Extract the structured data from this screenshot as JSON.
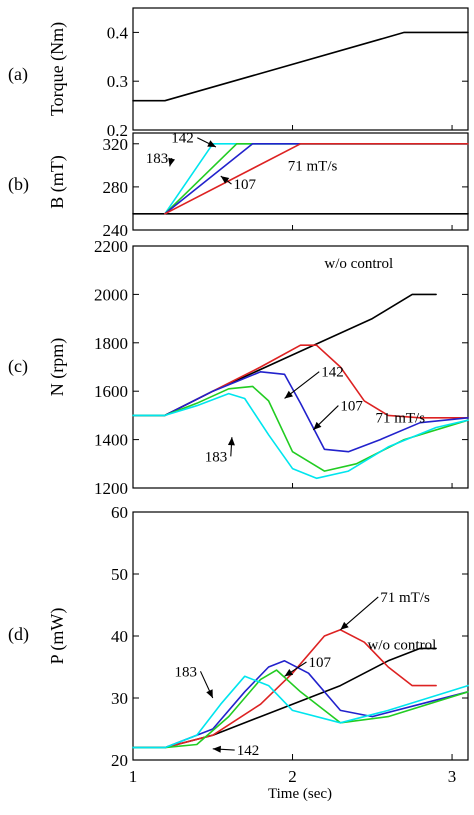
{
  "chart_data": [
    {
      "panel": "(a)",
      "type": "line",
      "ylabel": "Torque (Nm)",
      "ylim": [
        0.2,
        0.45
      ],
      "yticks": [
        0.2,
        0.3,
        0.4
      ],
      "xlim": [
        1,
        3.1
      ],
      "series": [
        {
          "color": "#000000",
          "x": [
            1.0,
            1.2,
            2.7,
            3.1
          ],
          "y": [
            0.26,
            0.26,
            0.4,
            0.4
          ]
        }
      ],
      "annotations": []
    },
    {
      "panel": "(b)",
      "type": "line",
      "ylabel": "B (mT)",
      "ylim": [
        240,
        330
      ],
      "yticks": [
        240,
        280,
        320
      ],
      "xlim": [
        1,
        3.1
      ],
      "series": [
        {
          "color": "#000000",
          "x": [
            1.0,
            3.1
          ],
          "y": [
            255,
            255
          ]
        },
        {
          "color": "#00e5ee",
          "x": [
            1.2,
            1.5,
            3.1
          ],
          "y": [
            255,
            320,
            320
          ]
        },
        {
          "color": "#22cc22",
          "x": [
            1.2,
            1.65,
            3.1
          ],
          "y": [
            255,
            320,
            320
          ]
        },
        {
          "color": "#2222cc",
          "x": [
            1.2,
            1.75,
            3.1
          ],
          "y": [
            255,
            320,
            320
          ]
        },
        {
          "color": "#dd2222",
          "x": [
            1.2,
            2.05,
            3.1
          ],
          "y": [
            255,
            320,
            320
          ]
        }
      ],
      "annotations": [
        {
          "text": "142",
          "x": 1.24,
          "y": 321,
          "to": [
            1.52,
            317
          ]
        },
        {
          "text": "183",
          "x": 1.08,
          "y": 302,
          "to": [
            1.23,
            299
          ]
        },
        {
          "text": "107",
          "x": 1.63,
          "y": 278,
          "to": [
            1.55,
            290
          ]
        },
        {
          "text": "71 mT/s",
          "x": 1.97,
          "y": 295,
          "to": null
        }
      ]
    },
    {
      "panel": "(c)",
      "type": "line",
      "ylabel": "N (rpm)",
      "ylim": [
        1200,
        2200
      ],
      "yticks": [
        1200,
        1400,
        1600,
        1800,
        2000,
        2200
      ],
      "xlim": [
        1,
        3.1
      ],
      "series": [
        {
          "color": "#000000",
          "x": [
            1.0,
            1.2,
            1.5,
            2.0,
            2.5,
            2.75,
            2.9
          ],
          "y": [
            1500,
            1500,
            1600,
            1750,
            1900,
            2000,
            2000
          ]
        },
        {
          "color": "#dd2222",
          "x": [
            1.0,
            1.2,
            1.5,
            1.8,
            2.05,
            2.15,
            2.3,
            2.45,
            2.6,
            2.8,
            3.1
          ],
          "y": [
            1500,
            1500,
            1600,
            1700,
            1790,
            1790,
            1700,
            1560,
            1500,
            1490,
            1490
          ]
        },
        {
          "color": "#2222cc",
          "x": [
            1.0,
            1.2,
            1.5,
            1.8,
            1.95,
            2.05,
            2.2,
            2.35,
            2.55,
            2.8,
            3.1
          ],
          "y": [
            1500,
            1500,
            1600,
            1680,
            1670,
            1550,
            1360,
            1350,
            1400,
            1470,
            1490
          ]
        },
        {
          "color": "#22cc22",
          "x": [
            1.0,
            1.2,
            1.4,
            1.6,
            1.75,
            1.85,
            2.0,
            2.2,
            2.4,
            2.7,
            3.1
          ],
          "y": [
            1500,
            1500,
            1550,
            1610,
            1620,
            1560,
            1350,
            1270,
            1300,
            1400,
            1480
          ]
        },
        {
          "color": "#00e5ee",
          "x": [
            1.0,
            1.2,
            1.4,
            1.6,
            1.7,
            1.85,
            2.0,
            2.15,
            2.35,
            2.6,
            2.9,
            3.1
          ],
          "y": [
            1500,
            1500,
            1540,
            1590,
            1570,
            1420,
            1280,
            1240,
            1270,
            1370,
            1450,
            1480
          ]
        }
      ],
      "annotations": [
        {
          "text": "w/o control",
          "x": 2.2,
          "y": 2110,
          "to": null
        },
        {
          "text": "71 mT/s",
          "x": 2.52,
          "y": 1470,
          "to": null
        },
        {
          "text": "142",
          "x": 2.18,
          "y": 1660,
          "to": [
            1.95,
            1570
          ]
        },
        {
          "text": "107",
          "x": 2.3,
          "y": 1520,
          "to": [
            2.13,
            1440
          ]
        },
        {
          "text": "183",
          "x": 1.45,
          "y": 1310,
          "to": [
            1.62,
            1410
          ]
        }
      ]
    },
    {
      "panel": "(d)",
      "type": "line",
      "ylabel": "P (mW)",
      "ylim": [
        20,
        60
      ],
      "yticks": [
        20,
        30,
        40,
        50,
        60
      ],
      "xlim": [
        1,
        3.1
      ],
      "xticks": [
        1,
        2,
        3
      ],
      "xlabel": "Time (sec)",
      "series": [
        {
          "color": "#000000",
          "x": [
            1.0,
            1.2,
            1.5,
            1.8,
            2.0,
            2.3,
            2.6,
            2.8,
            2.9
          ],
          "y": [
            22,
            22,
            24,
            27,
            29,
            32,
            36,
            38,
            38
          ]
        },
        {
          "color": "#dd2222",
          "x": [
            1.0,
            1.2,
            1.5,
            1.8,
            2.0,
            2.2,
            2.3,
            2.45,
            2.6,
            2.75,
            2.9
          ],
          "y": [
            22,
            22,
            24,
            29,
            34,
            40,
            41,
            39,
            35,
            32,
            32
          ]
        },
        {
          "color": "#2222cc",
          "x": [
            1.0,
            1.2,
            1.5,
            1.7,
            1.85,
            1.95,
            2.1,
            2.3,
            2.5,
            2.8,
            3.1
          ],
          "y": [
            22,
            22,
            25,
            31,
            35,
            36,
            34,
            28,
            27,
            29,
            31
          ]
        },
        {
          "color": "#22cc22",
          "x": [
            1.0,
            1.2,
            1.4,
            1.6,
            1.8,
            1.9,
            2.05,
            2.3,
            2.6,
            3.1
          ],
          "y": [
            22,
            22,
            22.5,
            27,
            33,
            34.5,
            31,
            26,
            27,
            31
          ]
        },
        {
          "color": "#00e5ee",
          "x": [
            1.0,
            1.2,
            1.4,
            1.55,
            1.7,
            1.85,
            2.0,
            2.3,
            2.6,
            3.1
          ],
          "y": [
            22,
            22,
            24,
            29,
            33.5,
            32,
            28,
            26,
            28,
            32
          ]
        }
      ],
      "annotations": [
        {
          "text": "71 mT/s",
          "x": 2.55,
          "y": 45.5,
          "to": [
            2.3,
            41
          ]
        },
        {
          "text": "w/o control",
          "x": 2.47,
          "y": 37.8,
          "to": null
        },
        {
          "text": "107",
          "x": 2.1,
          "y": 35,
          "to": [
            1.95,
            33.5
          ]
        },
        {
          "text": "183",
          "x": 1.26,
          "y": 33.5,
          "to": [
            1.5,
            30
          ]
        },
        {
          "text": "142",
          "x": 1.65,
          "y": 20.8,
          "to": [
            1.5,
            21.8
          ]
        }
      ]
    }
  ]
}
